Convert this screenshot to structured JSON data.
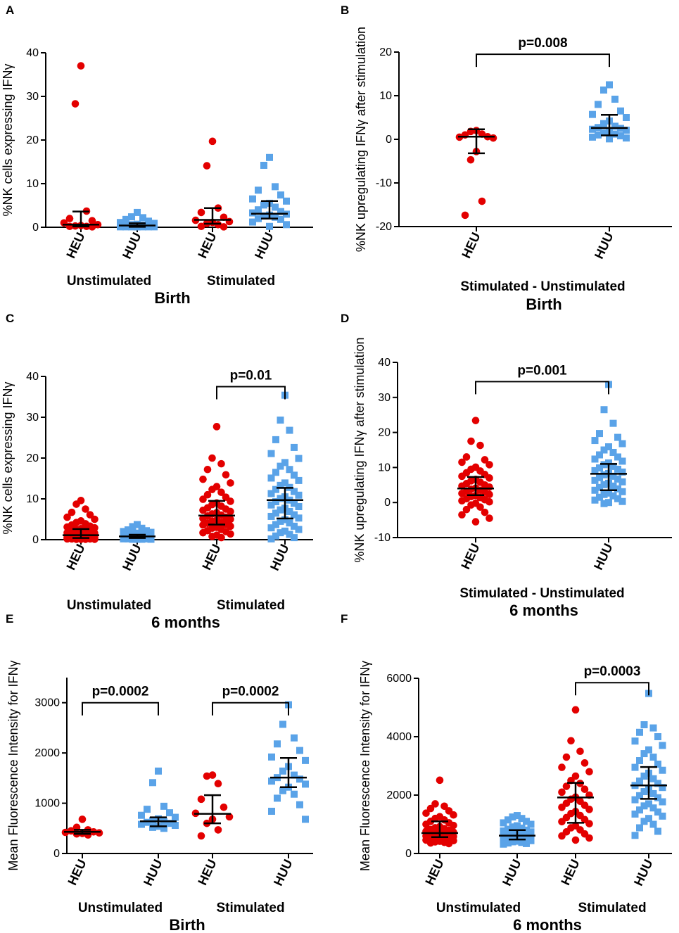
{
  "colors": {
    "heu": "#e30000",
    "huu": "#5aa3e8"
  },
  "chart_data": [
    {
      "id": "A",
      "type": "scatter",
      "panel_label": "A",
      "ylabel": "%NK cells expressing IFNγ",
      "ylim": [
        0,
        40
      ],
      "yticks": [
        0,
        10,
        20,
        30,
        40
      ],
      "zero_line": true,
      "categories": [
        "HEU",
        "HUU",
        "HEU",
        "HUU"
      ],
      "groups": [
        {
          "label": "Unstimulated",
          "span": [
            0,
            1
          ]
        },
        {
          "label": "Stimulated",
          "span": [
            2,
            3
          ]
        }
      ],
      "xlabel": "Birth",
      "series": [
        {
          "group": "HEU",
          "values": [
            37,
            28.3,
            3.7,
            2,
            1.5,
            1,
            0.6,
            0.4,
            0.3,
            0.2,
            0.2,
            0.1
          ],
          "median": 0.6,
          "iqr": [
            0.2,
            3.6
          ]
        },
        {
          "group": "HUU",
          "values": [
            3.4,
            2.4,
            2.2,
            1.8,
            1.4,
            1.1,
            0.9,
            0.7,
            0.6,
            0.5,
            0.4,
            0.3,
            0.2,
            0.2,
            0.1,
            0.1,
            0.1,
            0.1,
            0.1,
            0.1,
            0.1,
            0.1
          ],
          "median": 0.4,
          "iqr": [
            0.1,
            0.9
          ]
        },
        {
          "group": "HEU",
          "values": [
            19.7,
            14.1,
            4.4,
            3.4,
            2.3,
            1.6,
            1.3,
            1.1,
            0.9,
            0.6,
            0.2,
            0.1
          ],
          "median": 1.7,
          "iqr": [
            0.8,
            4.4
          ]
        },
        {
          "group": "HUU",
          "values": [
            16,
            14.2,
            9.3,
            8.5,
            7.4,
            6.5,
            6,
            5.5,
            5.1,
            4.6,
            4,
            3.6,
            3.3,
            3,
            2.8,
            2.6,
            2.3,
            2,
            1.8,
            1.2,
            0.6,
            0.2
          ],
          "median": 3.1,
          "iqr": [
            2,
            6
          ]
        }
      ],
      "comparisons": []
    },
    {
      "id": "B",
      "type": "scatter",
      "panel_label": "B",
      "ylabel": "%NK upregulating IFNγ after stimulation",
      "ylim": [
        -20,
        20
      ],
      "yticks": [
        -20,
        -10,
        0,
        10,
        20
      ],
      "zero_line": false,
      "categories": [
        "HEU",
        "HUU"
      ],
      "groups": [],
      "xsublabel": "Stimulated - Unstimulated",
      "xlabel": "Birth",
      "series": [
        {
          "group": "HEU",
          "values": [
            2,
            1.8,
            1.2,
            1,
            0.6,
            0.5,
            0.3,
            -2.8,
            -4.7,
            -14.2,
            -17.4
          ],
          "median": 0.6,
          "iqr": [
            -3.2,
            2.3
          ]
        },
        {
          "group": "HUU",
          "values": [
            12.5,
            11.3,
            9.2,
            8,
            6.5,
            5.7,
            5,
            4.2,
            3.6,
            3,
            2.7,
            2.5,
            2.3,
            2.1,
            1.8,
            1.5,
            1.2,
            1,
            0.8,
            0.5,
            0.3,
            0.1
          ],
          "median": 2.6,
          "iqr": [
            0.9,
            5.6
          ]
        }
      ],
      "comparisons": [
        {
          "from": 0,
          "to": 1,
          "label": "p=0.008",
          "y": 19.5
        }
      ]
    },
    {
      "id": "C",
      "type": "scatter",
      "panel_label": "C",
      "ylabel": "%NK cells expressing IFNγ",
      "ylim": [
        0,
        40
      ],
      "yticks": [
        0,
        10,
        20,
        30,
        40
      ],
      "zero_line": false,
      "categories": [
        "HEU",
        "HUU",
        "HEU",
        "HUU"
      ],
      "groups": [
        {
          "label": "Unstimulated",
          "span": [
            0,
            1
          ]
        },
        {
          "label": "Stimulated",
          "span": [
            2,
            3
          ]
        }
      ],
      "xlabel": "6 months",
      "series": [
        {
          "group": "HEU",
          "values": [
            9.6,
            8.7,
            7.5,
            6.7,
            6.1,
            5.5,
            5,
            4.6,
            4.2,
            3.9,
            3.6,
            3.3,
            3.1,
            2.9,
            2.7,
            2.5,
            2.3,
            2.1,
            1.9,
            1.7,
            1.6,
            1.5,
            1.4,
            1.3,
            1.2,
            1.1,
            1,
            0.9,
            0.8,
            0.7,
            0.7,
            0.6,
            0.5,
            0.5,
            0.4,
            0.4,
            0.3,
            0.3,
            0.2,
            0.2,
            0.2,
            0.1,
            0.1,
            0.1,
            0.1
          ],
          "median": 1.1,
          "iqr": [
            0.4,
            2.6
          ]
        },
        {
          "group": "HUU",
          "values": [
            3.7,
            3.2,
            2.8,
            2.4,
            2.2,
            2,
            1.8,
            1.6,
            1.5,
            1.4,
            1.3,
            1.2,
            1.1,
            1,
            0.9,
            0.9,
            0.8,
            0.8,
            0.7,
            0.7,
            0.6,
            0.6,
            0.5,
            0.5,
            0.5,
            0.4,
            0.4,
            0.4,
            0.3,
            0.3,
            0.3,
            0.2,
            0.2,
            0.2,
            0.1,
            0.1,
            0.1,
            0.1
          ],
          "median": 0.8,
          "iqr": [
            0.4,
            1.2
          ]
        },
        {
          "group": "HEU",
          "values": [
            27.7,
            20,
            18.6,
            17.2,
            15.9,
            14.8,
            13.9,
            13,
            12.3,
            11.6,
            11,
            10.4,
            9.9,
            9.4,
            9,
            8.6,
            8.2,
            7.8,
            7.5,
            7.2,
            6.9,
            6.6,
            6.3,
            6,
            5.8,
            5.5,
            5.2,
            5,
            4.8,
            4.5,
            4.2,
            4,
            3.8,
            3.6,
            3.3,
            3,
            2.8,
            2.5,
            2.2,
            2,
            1.7,
            1.4,
            1.1,
            0.8,
            0.5
          ],
          "median": 5.9,
          "iqr": [
            3.7,
            9.5
          ]
        },
        {
          "group": "HUU",
          "values": [
            35.4,
            29.3,
            26.8,
            24.5,
            22.6,
            21.1,
            19.9,
            18.9,
            18,
            17.2,
            16.5,
            15.8,
            15.1,
            14.5,
            13.9,
            13.3,
            12.8,
            12.3,
            11.8,
            11.3,
            10.9,
            10.5,
            10.1,
            9.7,
            9.3,
            8.9,
            8.5,
            8.1,
            7.7,
            7.3,
            6.9,
            6.5,
            6.1,
            5.7,
            5.3,
            4.9,
            4.5,
            4.1,
            3.7,
            3.3,
            2.9,
            2.5,
            2.1,
            1.7,
            1.3,
            0.9,
            0.5,
            0.2
          ],
          "median": 9.7,
          "iqr": [
            5.2,
            12.7
          ]
        }
      ],
      "comparisons": [
        {
          "from": 2,
          "to": 3,
          "label": "p=0.01",
          "y": 37.5
        }
      ]
    },
    {
      "id": "D",
      "type": "scatter",
      "panel_label": "D",
      "ylabel": "%NK upregulating IFNγ after stimulation",
      "ylim": [
        -10,
        40
      ],
      "yticks": [
        -10,
        0,
        10,
        20,
        30,
        40
      ],
      "zero_line": false,
      "categories": [
        "HEU",
        "HUU"
      ],
      "groups": [],
      "xsublabel": "Stimulated - Unstimulated",
      "xlabel": "6 months",
      "series": [
        {
          "group": "HEU",
          "values": [
            23.4,
            17.5,
            16.3,
            13,
            12.2,
            11.5,
            10.8,
            10.1,
            9.5,
            9,
            8.5,
            8,
            7.5,
            7,
            6.6,
            6.2,
            5.8,
            5.4,
            5,
            4.7,
            4.4,
            4.1,
            3.8,
            3.5,
            3.2,
            2.9,
            2.6,
            2.3,
            2,
            1.7,
            1.4,
            1.1,
            0.8,
            0.5,
            0.2,
            -0.2,
            -0.7,
            -1.3,
            -2,
            -2.8,
            -3.5,
            -4.5,
            -5.5
          ],
          "median": 4.0,
          "iqr": [
            2.1,
            7.3
          ]
        },
        {
          "group": "HUU",
          "values": [
            33.7,
            26.5,
            22.6,
            19.7,
            18.6,
            17.7,
            16.8,
            15.9,
            15,
            14.3,
            13.6,
            13,
            12.4,
            11.8,
            11.3,
            10.8,
            10.3,
            9.9,
            9.5,
            9.1,
            8.7,
            8.3,
            7.9,
            7.5,
            7.1,
            6.7,
            6.3,
            5.9,
            5.5,
            5.1,
            4.7,
            4.3,
            3.9,
            3.5,
            3.1,
            2.7,
            2.3,
            1.9,
            1.5,
            1.1,
            0.7,
            0.3,
            0,
            -0.3
          ],
          "median": 8.2,
          "iqr": [
            3.5,
            11
          ]
        }
      ],
      "comparisons": [
        {
          "from": 0,
          "to": 1,
          "label": "p=0.001",
          "y": 34.5
        }
      ]
    },
    {
      "id": "E",
      "type": "scatter",
      "panel_label": "E",
      "ylabel": "Mean Fluorescence Intensity for IFNγ",
      "ylim": [
        0,
        3500
      ],
      "yticks": [
        0,
        1000,
        2000,
        3000
      ],
      "zero_line": false,
      "categories": [
        "HEU",
        "HUU",
        "HEU",
        "HUU"
      ],
      "groups": [
        {
          "label": "Unstimulated",
          "span": [
            0,
            1
          ]
        },
        {
          "label": "Stimulated",
          "span": [
            2,
            3
          ]
        }
      ],
      "xlabel": "Birth",
      "series": [
        {
          "group": "HEU",
          "values": [
            680,
            520,
            470,
            450,
            430,
            420,
            410,
            400,
            390,
            370
          ],
          "median": 430,
          "iqr": [
            390,
            470
          ]
        },
        {
          "group": "HUU",
          "values": [
            1640,
            1410,
            940,
            880,
            810,
            760,
            720,
            690,
            660,
            640,
            620,
            600,
            580,
            560,
            540,
            520,
            500
          ],
          "median": 640,
          "iqr": [
            540,
            720
          ]
        },
        {
          "group": "HEU",
          "values": [
            1560,
            1540,
            1390,
            1080,
            920,
            800,
            730,
            680,
            600,
            470,
            350
          ],
          "median": 790,
          "iqr": [
            600,
            1160
          ]
        },
        {
          "group": "HUU",
          "values": [
            2960,
            2570,
            2300,
            2180,
            2050,
            1920,
            1850,
            1730,
            1640,
            1560,
            1510,
            1480,
            1440,
            1380,
            1320,
            1250,
            1180,
            1100,
            970,
            840,
            680
          ],
          "median": 1510,
          "iqr": [
            1320,
            1900
          ]
        }
      ],
      "comparisons": [
        {
          "from": 0,
          "to": 1,
          "label": "p=0.0002",
          "y": 3000
        },
        {
          "from": 2,
          "to": 3,
          "label": "p=0.0002",
          "y": 3000
        }
      ]
    },
    {
      "id": "F",
      "type": "scatter",
      "panel_label": "F",
      "ylabel": "Mean Fluorescence Intensity for IFNγ",
      "ylim": [
        0,
        6000
      ],
      "yticks": [
        0,
        2000,
        4000,
        6000
      ],
      "zero_line": false,
      "categories": [
        "HEU",
        "HUU",
        "HEU",
        "HUU"
      ],
      "groups": [
        {
          "label": "Unstimulated",
          "span": [
            0,
            1
          ]
        },
        {
          "label": "Stimulated",
          "span": [
            2,
            3
          ]
        }
      ],
      "xlabel": "6 months",
      "series": [
        {
          "group": "HEU",
          "values": [
            2510,
            1700,
            1620,
            1540,
            1460,
            1380,
            1320,
            1260,
            1200,
            1150,
            1100,
            1050,
            1000,
            960,
            920,
            880,
            850,
            820,
            790,
            760,
            730,
            700,
            680,
            660,
            640,
            620,
            600,
            580,
            560,
            540,
            520,
            500,
            480,
            460,
            440,
            420,
            400,
            380,
            360,
            340
          ],
          "median": 700,
          "iqr": [
            560,
            1100
          ]
        },
        {
          "group": "HUU",
          "values": [
            1300,
            1250,
            1200,
            1150,
            1100,
            1050,
            1000,
            950,
            910,
            870,
            830,
            800,
            770,
            740,
            710,
            680,
            660,
            640,
            620,
            600,
            580,
            560,
            540,
            520,
            500,
            480,
            460,
            440,
            420,
            400,
            380,
            360,
            340,
            320
          ],
          "median": 610,
          "iqr": [
            480,
            800
          ]
        },
        {
          "group": "HEU",
          "values": [
            4920,
            3860,
            3500,
            3300,
            3100,
            2950,
            2800,
            2650,
            2500,
            2400,
            2300,
            2200,
            2100,
            2000,
            1930,
            1860,
            1790,
            1720,
            1650,
            1580,
            1510,
            1440,
            1370,
            1300,
            1230,
            1160,
            1090,
            1020,
            950,
            880,
            810,
            740,
            670,
            600,
            530,
            460
          ],
          "median": 1920,
          "iqr": [
            1050,
            2420
          ]
        },
        {
          "group": "HUU",
          "values": [
            5480,
            4410,
            4300,
            4150,
            4000,
            3850,
            3700,
            3550,
            3420,
            3300,
            3180,
            3060,
            2950,
            2850,
            2750,
            2650,
            2560,
            2480,
            2400,
            2330,
            2260,
            2190,
            2120,
            2050,
            1980,
            1910,
            1840,
            1770,
            1700,
            1630,
            1560,
            1490,
            1420,
            1350,
            1280,
            1200,
            1100,
            1000,
            880,
            760,
            620
          ],
          "median": 2330,
          "iqr": [
            1870,
            2960
          ]
        }
      ],
      "comparisons": [
        {
          "from": 2,
          "to": 3,
          "label": "p=0.0003",
          "y": 5850
        }
      ]
    }
  ]
}
